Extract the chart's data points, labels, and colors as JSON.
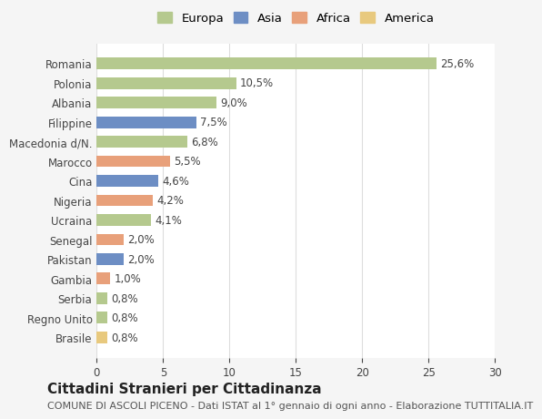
{
  "categories": [
    "Brasile",
    "Regno Unito",
    "Serbia",
    "Gambia",
    "Pakistan",
    "Senegal",
    "Ucraina",
    "Nigeria",
    "Cina",
    "Marocco",
    "Macedonia d/N.",
    "Filippine",
    "Albania",
    "Polonia",
    "Romania"
  ],
  "values": [
    0.8,
    0.8,
    0.8,
    1.0,
    2.0,
    2.0,
    4.1,
    4.2,
    4.6,
    5.5,
    6.8,
    7.5,
    9.0,
    10.5,
    25.6
  ],
  "labels": [
    "0,8%",
    "0,8%",
    "0,8%",
    "1,0%",
    "2,0%",
    "2,0%",
    "4,1%",
    "4,2%",
    "4,6%",
    "5,5%",
    "6,8%",
    "7,5%",
    "9,0%",
    "10,5%",
    "25,6%"
  ],
  "colors": [
    "#e8c97e",
    "#b5c98e",
    "#b5c98e",
    "#e8a07a",
    "#6d8ec4",
    "#e8a07a",
    "#b5c98e",
    "#e8a07a",
    "#6d8ec4",
    "#e8a07a",
    "#b5c98e",
    "#6d8ec4",
    "#b5c98e",
    "#b5c98e",
    "#b5c98e"
  ],
  "legend": [
    {
      "label": "Europa",
      "color": "#b5c98e"
    },
    {
      "label": "Asia",
      "color": "#6d8ec4"
    },
    {
      "label": "Africa",
      "color": "#e8a07a"
    },
    {
      "label": "America",
      "color": "#e8c97e"
    }
  ],
  "xlim": [
    0,
    30
  ],
  "xticks": [
    0,
    5,
    10,
    15,
    20,
    25,
    30
  ],
  "title1": "Cittadini Stranieri per Cittadinanza",
  "title2": "COMUNE DI ASCOLI PICENO - Dati ISTAT al 1° gennaio di ogni anno - Elaborazione TUTTITALIA.IT",
  "background_color": "#f5f5f5",
  "plot_background": "#ffffff",
  "bar_height": 0.6,
  "label_fontsize": 8.5,
  "tick_fontsize": 8.5,
  "title1_fontsize": 11,
  "title2_fontsize": 8
}
